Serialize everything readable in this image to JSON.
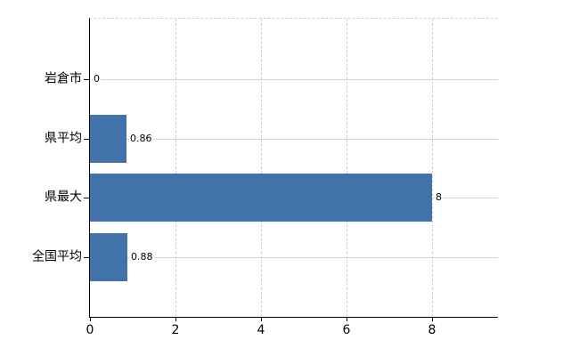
{
  "chart_data": {
    "type": "bar",
    "orientation": "horizontal",
    "title": "",
    "xlabel": "",
    "ylabel": "",
    "categories": [
      "岩倉市",
      "県平均",
      "県最大",
      "全国平均"
    ],
    "values": [
      0,
      0.86,
      8,
      0.88
    ],
    "value_labels": [
      "0",
      "0.86",
      "8",
      "0.88"
    ],
    "x_ticks": [
      0,
      2,
      4,
      6,
      8
    ],
    "xlim": [
      0,
      9.55
    ],
    "grid": true,
    "legend": false,
    "colors": {
      "bar": "#4172aa",
      "horizontal_grid": "#ccd8cc",
      "vertical_grid": "#d5ccd2",
      "axis": "#000000",
      "text": "#000000",
      "background": "#ffffff"
    }
  }
}
